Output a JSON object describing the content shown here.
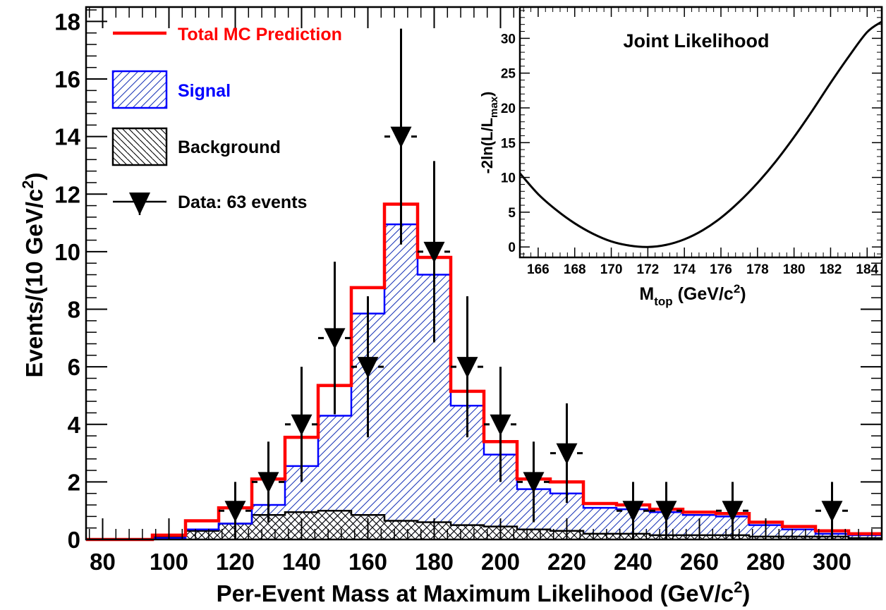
{
  "chart_data": [
    {
      "type": "histogram",
      "xlabel": "Per-Event Mass at Maximum Likelihood (GeV/c²)",
      "xlabel_main": "Per-Event Mass at Maximum Likelihood (GeV/c",
      "xlabel_sup": "2",
      "xlabel_close": ")",
      "ylabel": "Events/(10 GeV/c²)",
      "ylabel_main": "Events/(10 GeV/c",
      "ylabel_sup": "2",
      "ylabel_close": ")",
      "xlim": [
        75,
        315
      ],
      "ylim": [
        0,
        18.5
      ],
      "xticks": [
        80,
        100,
        120,
        140,
        160,
        180,
        200,
        220,
        240,
        260,
        280,
        300
      ],
      "yticks": [
        0,
        2,
        4,
        6,
        8,
        10,
        12,
        14,
        16,
        18
      ],
      "bin_edges": [
        75,
        85,
        95,
        105,
        115,
        125,
        135,
        145,
        155,
        165,
        175,
        185,
        195,
        205,
        215,
        225,
        235,
        245,
        255,
        265,
        275,
        285,
        295,
        305,
        315
      ],
      "series": [
        {
          "name": "Total MC Prediction",
          "color": "#ff0000",
          "values": [
            0.0,
            0.0,
            0.15,
            0.65,
            1.1,
            2.1,
            3.55,
            5.35,
            8.75,
            11.65,
            9.8,
            5.15,
            3.4,
            2.1,
            2.0,
            1.25,
            1.2,
            1.05,
            0.95,
            0.9,
            0.6,
            0.45,
            0.3,
            0.2
          ]
        },
        {
          "name": "Signal",
          "color": "#0000ff",
          "hatch": "diagonal",
          "values": [
            0.0,
            0.0,
            0.05,
            0.35,
            0.55,
            1.2,
            2.55,
            4.3,
            7.85,
            10.95,
            9.2,
            4.65,
            2.95,
            1.75,
            1.6,
            1.1,
            1.05,
            0.95,
            0.85,
            0.8,
            0.5,
            0.35,
            0.2,
            0.15
          ]
        },
        {
          "name": "Background",
          "color": "#000000",
          "hatch": "cross",
          "values": [
            0.0,
            0.0,
            0.1,
            0.3,
            0.55,
            0.85,
            0.95,
            1.0,
            0.85,
            0.65,
            0.6,
            0.5,
            0.45,
            0.35,
            0.3,
            0.2,
            0.2,
            0.15,
            0.15,
            0.15,
            0.1,
            0.1,
            0.1,
            0.05
          ]
        }
      ],
      "data_points": {
        "name": "Data: 63 events",
        "points": [
          {
            "x": 120,
            "y": 1,
            "err": 1.0
          },
          {
            "x": 130,
            "y": 2,
            "err": 1.4
          },
          {
            "x": 140,
            "y": 4,
            "err": 2.0
          },
          {
            "x": 150,
            "y": 7,
            "err": 2.65
          },
          {
            "x": 160,
            "y": 6,
            "err": 2.45
          },
          {
            "x": 170,
            "y": 14,
            "err": 3.75
          },
          {
            "x": 180,
            "y": 10,
            "err": 3.15
          },
          {
            "x": 190,
            "y": 6,
            "err": 2.45
          },
          {
            "x": 200,
            "y": 4,
            "err": 2.0
          },
          {
            "x": 210,
            "y": 2,
            "err": 1.4
          },
          {
            "x": 220,
            "y": 3,
            "err": 1.73
          },
          {
            "x": 240,
            "y": 1,
            "err": 1.0
          },
          {
            "x": 250,
            "y": 1,
            "err": 1.0
          },
          {
            "x": 270,
            "y": 1,
            "err": 1.0
          },
          {
            "x": 300,
            "y": 1,
            "err": 1.0
          }
        ]
      },
      "legend": {
        "position": "top-left",
        "entries": [
          "Total MC Prediction",
          "Signal",
          "Background",
          "Data: 63 events"
        ],
        "colors": [
          "#ff0000",
          "#0000ff",
          "#000000",
          "#000000"
        ]
      }
    },
    {
      "type": "line",
      "title": "Joint Likelihood",
      "xlabel": "M_top (GeV/c²)",
      "xlabel_main": "M",
      "xlabel_sub": "top",
      "xlabel_rest": " (GeV/c",
      "xlabel_sup": "2",
      "xlabel_close": ")",
      "ylabel": "-2ln(L/L_max)",
      "ylabel_main": "-2ln(L/L",
      "ylabel_sub": "max",
      "ylabel_close": ")",
      "xlim": [
        165,
        184.8
      ],
      "ylim": [
        -1.5,
        34.5
      ],
      "xticks": [
        166,
        168,
        170,
        172,
        174,
        176,
        178,
        180,
        182,
        184
      ],
      "yticks": [
        0,
        5,
        10,
        15,
        20,
        25,
        30
      ],
      "curve": {
        "x": [
          165,
          166,
          167,
          168,
          169,
          170,
          171,
          172,
          173,
          174,
          175,
          176,
          177,
          178,
          179,
          180,
          181,
          182,
          183,
          184,
          184.8
        ],
        "y": [
          10.6,
          7.6,
          5.3,
          3.4,
          1.9,
          0.8,
          0.2,
          0.0,
          0.3,
          1.1,
          2.4,
          4.2,
          6.5,
          9.2,
          12.3,
          15.8,
          19.6,
          23.6,
          27.4,
          30.9,
          32.4
        ]
      }
    }
  ]
}
